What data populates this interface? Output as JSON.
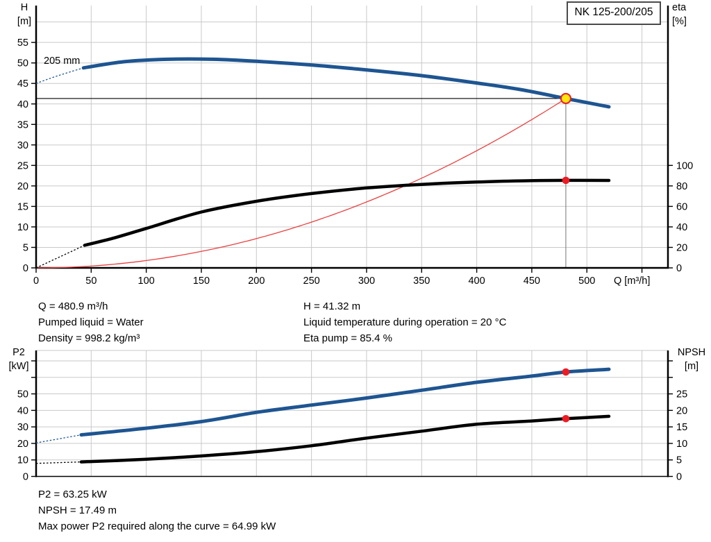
{
  "pump_model": "NK 125-200/205",
  "impeller_label": "205 mm",
  "colors": {
    "curve_blue": "#1e5591",
    "curve_black": "#000000",
    "system_red": "#e84040",
    "marker_red": "#ed1c24",
    "marker_yellow_fill": "#ffe60b",
    "marker_yellow_ring": "#e8242b",
    "grid": "#c9c9c9",
    "duty_line": "#808080"
  },
  "info_top": {
    "left": [
      "Q = 480.9 m³/h",
      "Pumped liquid = Water",
      "Density = 998.2 kg/m³"
    ],
    "right": [
      "H = 41.32 m",
      "Liquid temperature during operation = 20 °C",
      "Eta pump = 85.4 %"
    ]
  },
  "info_bottom": [
    "P2 = 63.25 kW",
    "NPSH = 17.49 m",
    "Max power P2 required along the curve = 64.99 kW"
  ],
  "chart_data": [
    {
      "type": "line",
      "name": "qh-efficiency-chart",
      "x": {
        "label": "Q [m³/h]",
        "min": 0,
        "max": 573.6,
        "step": 50,
        "label_max": 500,
        "grid_max": 550,
        "tick_max": 550,
        "show_tick_labels": true
      },
      "y_left": {
        "label": "H [m]",
        "min": 0,
        "max": 64,
        "step": 5,
        "tick_max": 55,
        "label_max": 55
      },
      "y_right": {
        "label": "eta [%]",
        "ticks": [
          0,
          20,
          40,
          60,
          80,
          100
        ],
        "label_max": 100,
        "left_units_per_unit": 0.25
      },
      "series": [
        {
          "name": "head-curve",
          "axis": "left",
          "color_key": "curve_blue",
          "width": 5,
          "dashed": [
            [
              0,
              45.0
            ],
            [
              20,
              46.9
            ],
            [
              43,
              48.8
            ]
          ],
          "points": [
            [
              43,
              48.8
            ],
            [
              80,
              50.3
            ],
            [
              120,
              50.9
            ],
            [
              160,
              50.9
            ],
            [
              200,
              50.4
            ],
            [
              250,
              49.5
            ],
            [
              300,
              48.3
            ],
            [
              350,
              46.9
            ],
            [
              400,
              45.1
            ],
            [
              440,
              43.5
            ],
            [
              480.9,
              41.32
            ],
            [
              520,
              39.3
            ]
          ]
        },
        {
          "name": "efficiency-curve",
          "axis": "right",
          "color_key": "curve_black",
          "width": 4.5,
          "dashed": [
            [
              0,
              0
            ],
            [
              44,
              22
            ]
          ],
          "points": [
            [
              44,
              22
            ],
            [
              70,
              29
            ],
            [
              100,
              38.5
            ],
            [
              150,
              54.5
            ],
            [
              200,
              65
            ],
            [
              250,
              72.5
            ],
            [
              300,
              78
            ],
            [
              350,
              81.5
            ],
            [
              400,
              83.8
            ],
            [
              440,
              84.9
            ],
            [
              480.9,
              85.4
            ],
            [
              520,
              85.3
            ]
          ]
        }
      ],
      "system_curve": {
        "color_key": "system_red",
        "width": 1.3
      },
      "operating_point": {
        "q": 480.9,
        "h": 41.32,
        "eta": 85.4
      }
    },
    {
      "type": "line",
      "name": "p2-npsh-chart",
      "x": {
        "label": "",
        "min": 0,
        "max": 573.6,
        "step": 50,
        "label_max": -1,
        "grid_max": 550,
        "tick_max": -1,
        "show_tick_labels": false
      },
      "y_left": {
        "label": "P2 [kW]",
        "min": 0,
        "max": 76.3,
        "step": 10,
        "tick_max": 70,
        "label_max": 50
      },
      "y_right": {
        "label": "NPSH [m]",
        "ticks": [
          0,
          5,
          10,
          15,
          20,
          25,
          30,
          35
        ],
        "label_max": 25,
        "left_units_per_unit": 2
      },
      "series": [
        {
          "name": "p2-curve",
          "axis": "left",
          "color_key": "curve_blue",
          "width": 5,
          "dashed": [
            [
              0,
              20.3
            ],
            [
              41,
              25.2
            ]
          ],
          "points": [
            [
              41,
              25.2
            ],
            [
              93,
              28.7
            ],
            [
              150,
              33.2
            ],
            [
              200,
              38.8
            ],
            [
              250,
              43.2
            ],
            [
              300,
              47.5
            ],
            [
              350,
              52.2
            ],
            [
              400,
              57.0
            ],
            [
              450,
              60.8
            ],
            [
              480.9,
              63.25
            ],
            [
              520,
              64.9
            ]
          ]
        },
        {
          "name": "npsh-curve",
          "axis": "right",
          "color_key": "curve_black",
          "width": 4.5,
          "dashed": [
            [
              0,
              3.95
            ],
            [
              41,
              4.4
            ]
          ],
          "points": [
            [
              41,
              4.4
            ],
            [
              100,
              5.2
            ],
            [
              150,
              6.2
            ],
            [
              200,
              7.5
            ],
            [
              250,
              9.3
            ],
            [
              300,
              11.6
            ],
            [
              350,
              13.7
            ],
            [
              400,
              15.8
            ],
            [
              450,
              16.8
            ],
            [
              480.9,
              17.49
            ],
            [
              520,
              18.2
            ]
          ]
        }
      ],
      "operating_point": {
        "q": 480.9,
        "p2": 63.25,
        "npsh": 17.49
      }
    }
  ]
}
